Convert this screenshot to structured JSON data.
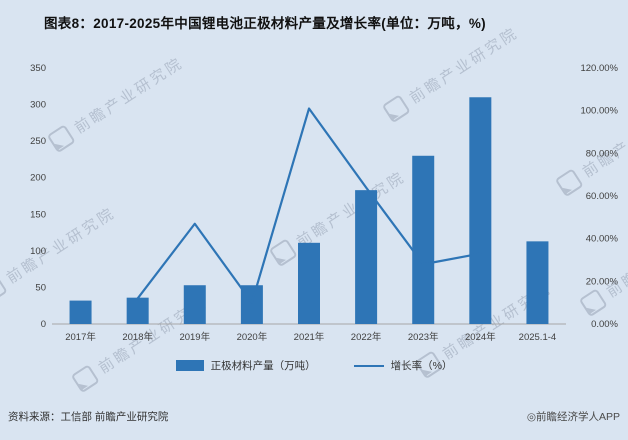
{
  "title": "图表8：2017-2025年中国锂电池正极材料产量及增长率(单位：万吨，%)",
  "chart_data": {
    "type": "bar+line combo",
    "categories": [
      "2017年",
      "2018年",
      "2019年",
      "2020年",
      "2021年",
      "2022年",
      "2023年",
      "2024年",
      "2025.1-4"
    ],
    "series": [
      {
        "name": "正极材料产量（万吨）",
        "type": "bar",
        "axis": "left",
        "values": [
          32,
          36,
          53,
          53,
          111,
          183,
          230,
          310,
          113
        ]
      },
      {
        "name": "增长率（%）",
        "type": "line",
        "axis": "right",
        "values": [
          null,
          12,
          47,
          10,
          101,
          64,
          28,
          33,
          null
        ]
      }
    ],
    "left_axis": {
      "min": 0,
      "max": 350,
      "step": 50,
      "ticks": [
        "0",
        "50",
        "100",
        "150",
        "200",
        "250",
        "300",
        "350"
      ]
    },
    "right_axis": {
      "min": 0,
      "max": 120,
      "step": 20,
      "ticks": [
        "0.00%",
        "20.00%",
        "40.00%",
        "60.00%",
        "80.00%",
        "100.00%",
        "120.00%"
      ]
    },
    "colors": {
      "bar": "#2e75b6",
      "line": "#2e75b6"
    },
    "grid": false,
    "legend_position": "bottom"
  },
  "source": "资料来源：工信部 前瞻产业研究院",
  "footer": "◎前瞻经济学人APP",
  "watermark": "前瞻产业研究院"
}
